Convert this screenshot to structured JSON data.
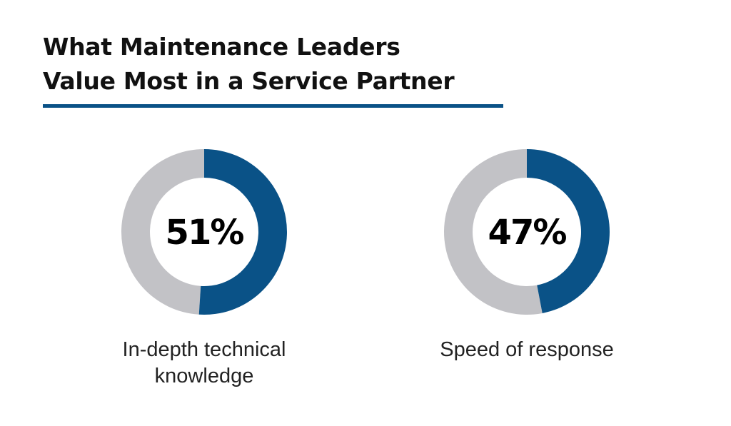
{
  "title_lines": [
    "What Maintenance Leaders",
    "Value Most in a Service Partner"
  ],
  "colors": {
    "accent": "#0a5287",
    "remainder": "#c2c2c6",
    "rule": "#0a5287"
  },
  "chart_data": [
    {
      "type": "pie",
      "variant": "donut",
      "value": 51,
      "max": 100,
      "value_label": "51%",
      "label_lines": [
        "In-depth technical knowledge"
      ]
    },
    {
      "type": "pie",
      "variant": "donut",
      "value": 47,
      "max": 100,
      "value_label": "47%",
      "label_lines": [
        "Speed of response"
      ]
    }
  ]
}
